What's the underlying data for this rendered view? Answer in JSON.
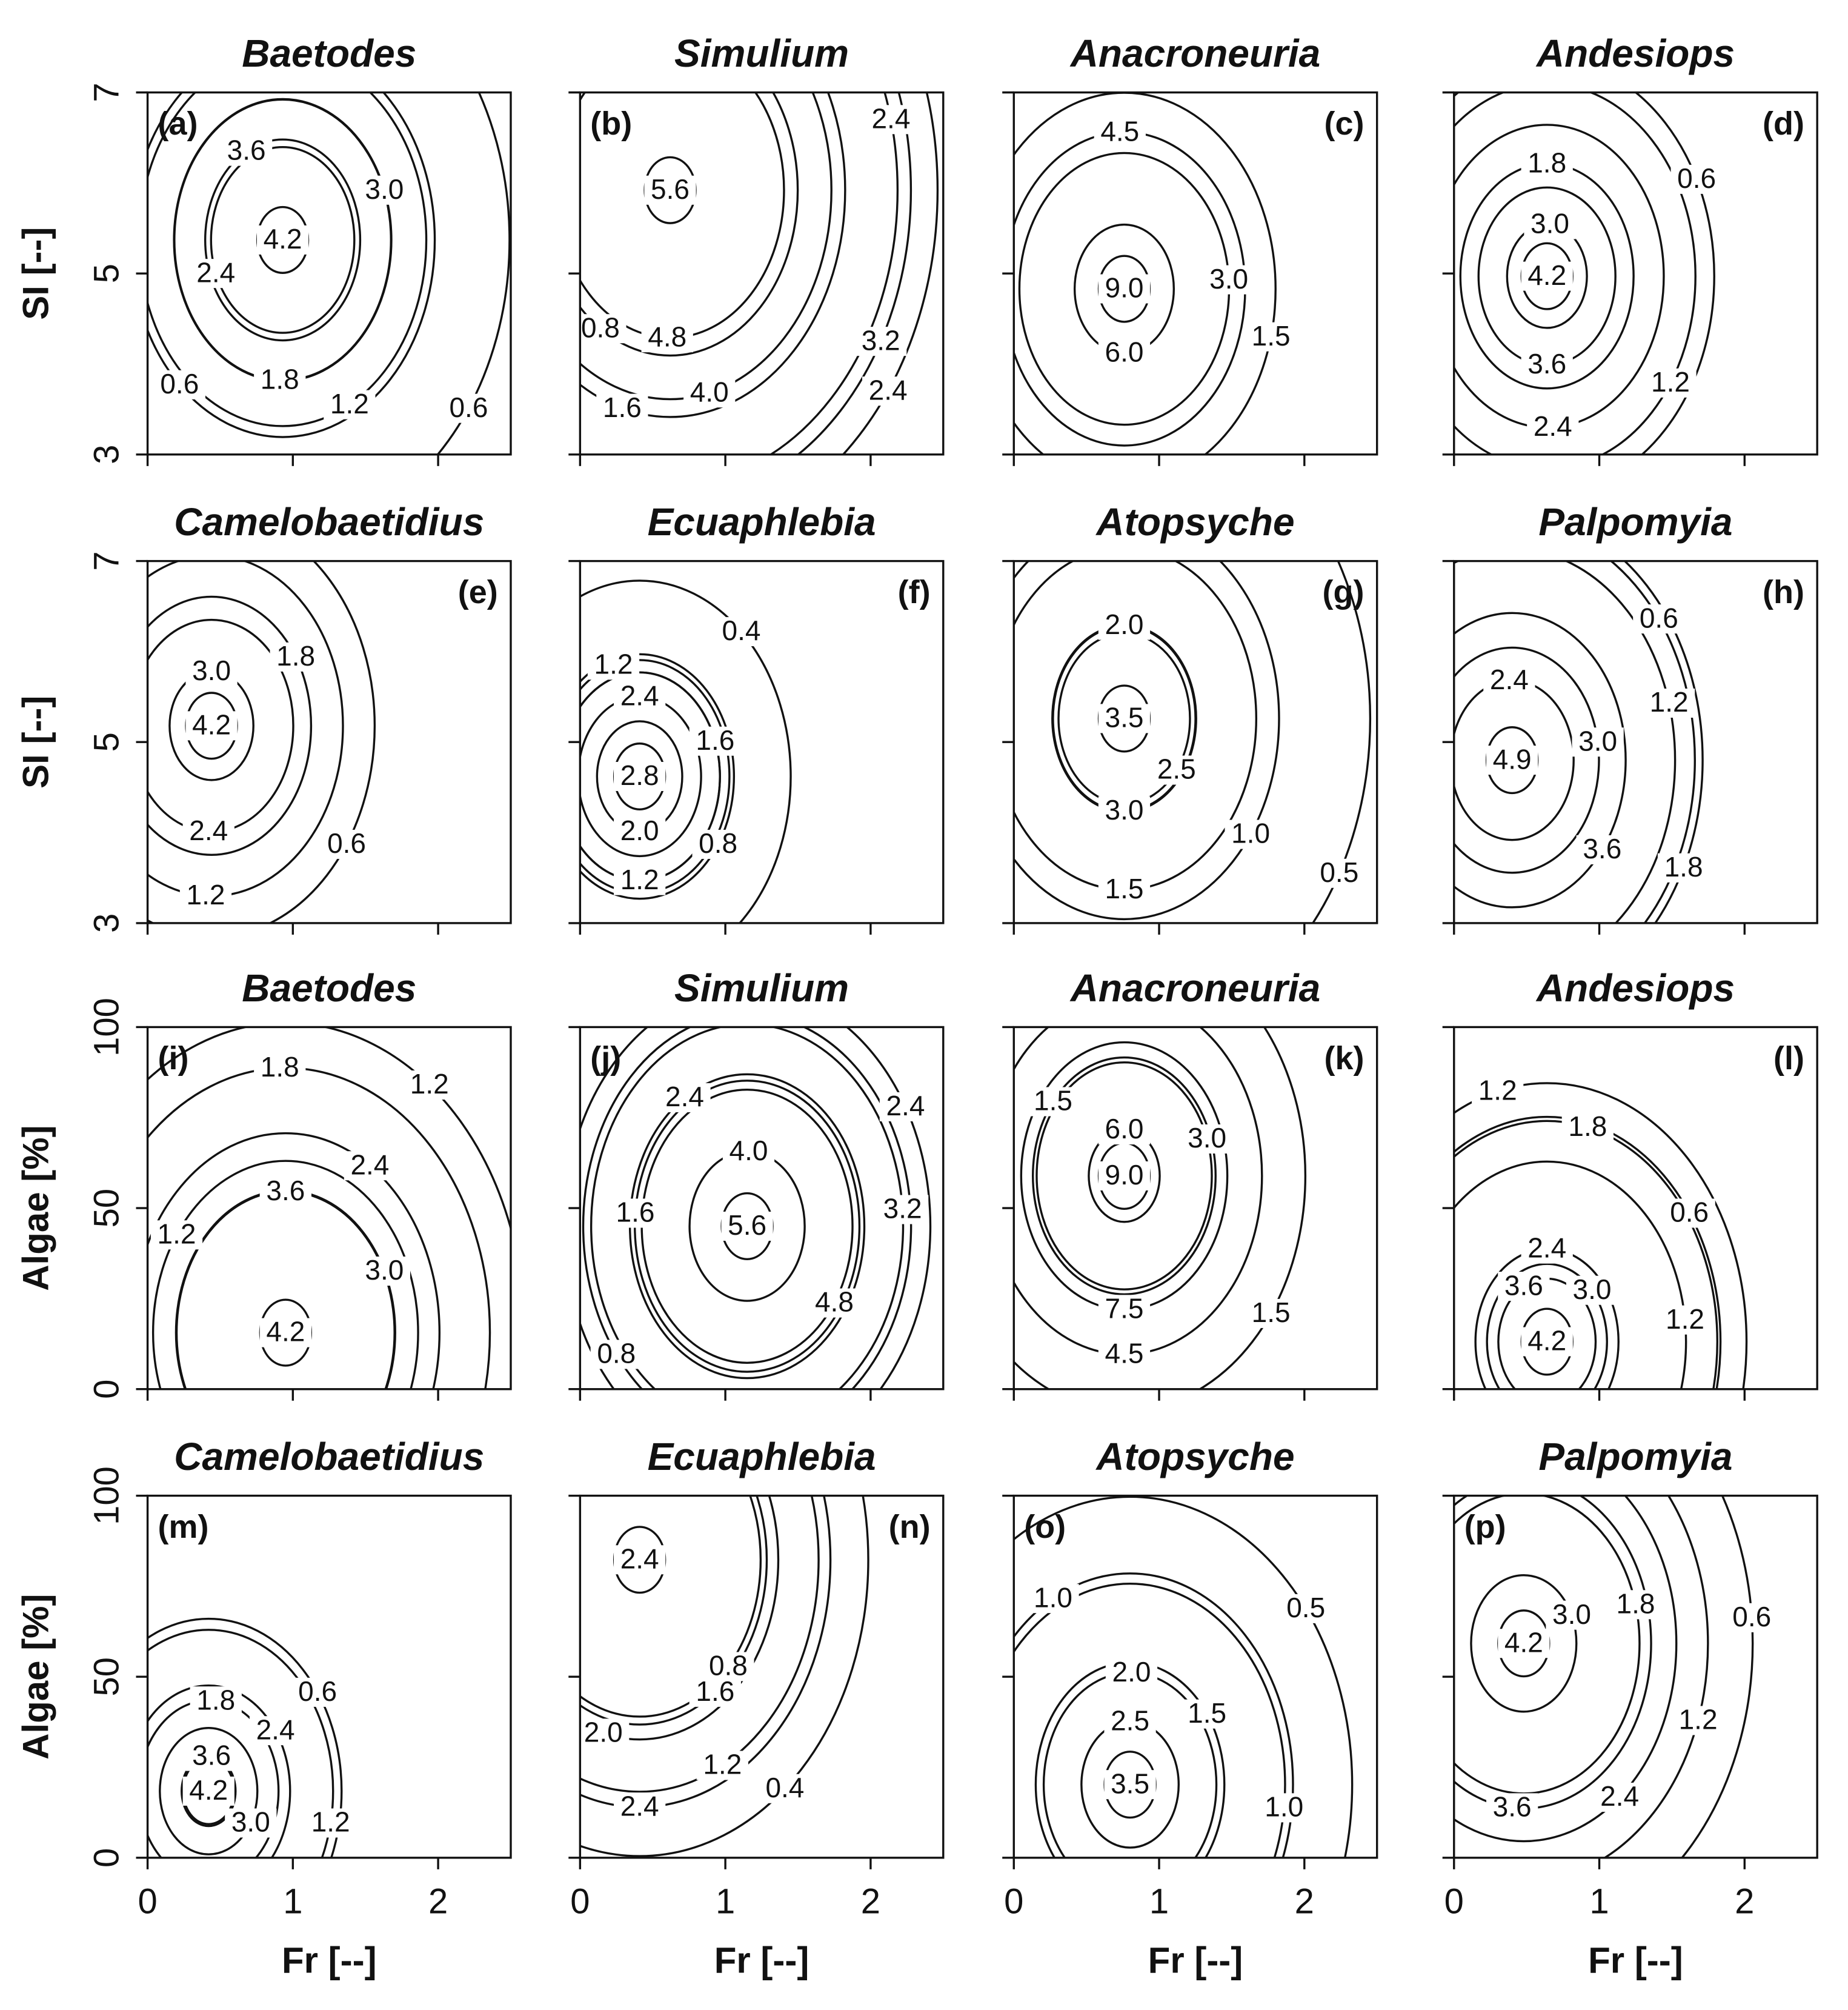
{
  "chart_data": [
    {
      "type": "contour",
      "title": "Baetodes",
      "panel_label": "(a)",
      "label_corner": "top-left",
      "ylabel": "SI [--]",
      "xlim": [
        0,
        2.5
      ],
      "xticks": [
        0,
        1,
        2
      ],
      "ylim": [
        3,
        7
      ],
      "yticks": [
        3,
        5,
        7
      ],
      "contours": [
        {
          "level": 3.6,
          "label": "3.6",
          "x": 0.68,
          "y": 6.35
        },
        {
          "level": 4.2,
          "label": "4.2",
          "x": 0.93,
          "y": 5.37
        },
        {
          "level": 3.0,
          "label": "3.0",
          "x": 1.63,
          "y": 5.92
        },
        {
          "level": 2.4,
          "label": "2.4",
          "x": 0.47,
          "y": 5.0
        },
        {
          "level": 1.8,
          "label": "1.8",
          "x": 0.91,
          "y": 3.82
        },
        {
          "level": 1.2,
          "label": "1.2",
          "x": 1.39,
          "y": 3.55
        },
        {
          "level": 0.6,
          "label": "0.6",
          "x": 0.22,
          "y": 3.77
        },
        {
          "level": 0.6,
          "label": "0.6",
          "x": 2.21,
          "y": 3.51
        }
      ]
    },
    {
      "type": "contour",
      "title": "Simulium",
      "panel_label": "(b)",
      "label_corner": "top-left",
      "xlim": [
        0,
        2.5
      ],
      "xticks": [
        0,
        1,
        2
      ],
      "ylim": [
        3,
        7
      ],
      "yticks": [
        3,
        5,
        7
      ],
      "contours": [
        {
          "level": 5.6,
          "label": "5.6",
          "x": 0.62,
          "y": 5.92
        },
        {
          "level": 4.8,
          "label": "4.8",
          "x": 0.6,
          "y": 4.29
        },
        {
          "level": 4.0,
          "label": "4.0",
          "x": 0.89,
          "y": 3.68
        },
        {
          "level": 3.2,
          "label": "3.2",
          "x": 2.07,
          "y": 4.25
        },
        {
          "level": 2.4,
          "label": "2.4",
          "x": 2.14,
          "y": 6.7
        },
        {
          "level": 2.4,
          "label": "2.4",
          "x": 2.12,
          "y": 3.7
        },
        {
          "level": 1.6,
          "label": "1.6",
          "x": 0.29,
          "y": 3.51
        },
        {
          "level": 0.8,
          "label": "0.8",
          "x": 0.14,
          "y": 4.39
        }
      ]
    },
    {
      "type": "contour",
      "title": "Anacroneuria",
      "panel_label": "(c)",
      "label_corner": "top-right",
      "xlim": [
        0,
        2.5
      ],
      "xticks": [
        0,
        1,
        2
      ],
      "ylim": [
        3,
        7
      ],
      "yticks": [
        3,
        5,
        7
      ],
      "contours": [
        {
          "level": 4.5,
          "label": "4.5",
          "x": 0.73,
          "y": 6.56
        },
        {
          "level": 9.0,
          "label": "9.0",
          "x": 0.76,
          "y": 4.83
        },
        {
          "level": 6.0,
          "label": "6.0",
          "x": 0.76,
          "y": 4.12
        },
        {
          "level": 3.0,
          "label": "3.0",
          "x": 1.48,
          "y": 4.93
        },
        {
          "level": 1.5,
          "label": "1.5",
          "x": 1.77,
          "y": 4.3
        }
      ]
    },
    {
      "type": "contour",
      "title": "Andesiops",
      "panel_label": "(d)",
      "label_corner": "top-right",
      "xlim": [
        0,
        2.5
      ],
      "xticks": [
        0,
        1,
        2
      ],
      "ylim": [
        3,
        7
      ],
      "yticks": [
        3,
        5,
        7
      ],
      "contours": [
        {
          "level": 1.8,
          "label": "1.8",
          "x": 0.64,
          "y": 6.21
        },
        {
          "level": 3.0,
          "label": "3.0",
          "x": 0.66,
          "y": 5.54
        },
        {
          "level": 4.2,
          "label": "4.2",
          "x": 0.64,
          "y": 4.97
        },
        {
          "level": 3.6,
          "label": "3.6",
          "x": 0.64,
          "y": 3.99
        },
        {
          "level": 2.4,
          "label": "2.4",
          "x": 0.68,
          "y": 3.3
        },
        {
          "level": 0.6,
          "label": "0.6",
          "x": 1.67,
          "y": 6.04
        },
        {
          "level": 1.2,
          "label": "1.2",
          "x": 1.49,
          "y": 3.79
        }
      ]
    },
    {
      "type": "contour",
      "title": "Camelobaetidius",
      "panel_label": "(e)",
      "label_corner": "top-right",
      "ylabel": "SI [--]",
      "xlim": [
        0,
        2.5
      ],
      "xticks": [
        0,
        1,
        2
      ],
      "ylim": [
        3,
        7
      ],
      "yticks": [
        3,
        5,
        7
      ],
      "contours": [
        {
          "level": 3.0,
          "label": "3.0",
          "x": 0.44,
          "y": 5.78
        },
        {
          "level": 4.2,
          "label": "4.2",
          "x": 0.44,
          "y": 5.18
        },
        {
          "level": 1.8,
          "label": "1.8",
          "x": 1.02,
          "y": 5.94
        },
        {
          "level": 2.4,
          "label": "2.4",
          "x": 0.42,
          "y": 4.01
        },
        {
          "level": 1.2,
          "label": "1.2",
          "x": 0.4,
          "y": 3.3
        },
        {
          "level": 0.6,
          "label": "0.6",
          "x": 1.37,
          "y": 3.87
        }
      ]
    },
    {
      "type": "contour",
      "title": "Ecuaphlebia",
      "panel_label": "(f)",
      "label_corner": "top-right",
      "xlim": [
        0,
        2.5
      ],
      "xticks": [
        0,
        1,
        2
      ],
      "ylim": [
        3,
        7
      ],
      "yticks": [
        3,
        5,
        7
      ],
      "contours": [
        {
          "level": 1.2,
          "label": "1.2",
          "x": 0.23,
          "y": 5.85
        },
        {
          "level": 0.4,
          "label": "0.4",
          "x": 1.11,
          "y": 6.22
        },
        {
          "level": 2.4,
          "label": "2.4",
          "x": 0.41,
          "y": 5.5
        },
        {
          "level": 1.6,
          "label": "1.6",
          "x": 0.93,
          "y": 5.01
        },
        {
          "level": 2.8,
          "label": "2.8",
          "x": 0.41,
          "y": 4.62
        },
        {
          "level": 2.0,
          "label": "2.0",
          "x": 0.41,
          "y": 4.01
        },
        {
          "level": 1.2,
          "label": "1.2",
          "x": 0.41,
          "y": 3.47
        },
        {
          "level": 0.8,
          "label": "0.8",
          "x": 0.95,
          "y": 3.87
        }
      ]
    },
    {
      "type": "contour",
      "title": "Atopsyche",
      "panel_label": "(g)",
      "label_corner": "top-right",
      "xlim": [
        0,
        2.5
      ],
      "xticks": [
        0,
        1,
        2
      ],
      "ylim": [
        3,
        7
      ],
      "yticks": [
        3,
        5,
        7
      ],
      "contours": [
        {
          "level": 2.0,
          "label": "2.0",
          "x": 0.76,
          "y": 6.29
        },
        {
          "level": 3.5,
          "label": "3.5",
          "x": 0.76,
          "y": 5.26
        },
        {
          "level": 2.5,
          "label": "2.5",
          "x": 1.12,
          "y": 4.69
        },
        {
          "level": 3.0,
          "label": "3.0",
          "x": 0.76,
          "y": 4.24
        },
        {
          "level": 1.0,
          "label": "1.0",
          "x": 1.63,
          "y": 3.98
        },
        {
          "level": 0.5,
          "label": "0.5",
          "x": 2.24,
          "y": 3.55
        },
        {
          "level": 1.5,
          "label": "1.5",
          "x": 0.76,
          "y": 3.37
        }
      ]
    },
    {
      "type": "contour",
      "title": "Palpomyia",
      "panel_label": "(h)",
      "label_corner": "top-right",
      "xlim": [
        0,
        2.5
      ],
      "xticks": [
        0,
        1,
        2
      ],
      "ylim": [
        3,
        7
      ],
      "yticks": [
        3,
        5,
        7
      ],
      "contours": [
        {
          "level": 0.6,
          "label": "0.6",
          "x": 1.41,
          "y": 6.36
        },
        {
          "level": 2.4,
          "label": "2.4",
          "x": 0.38,
          "y": 5.68
        },
        {
          "level": 1.2,
          "label": "1.2",
          "x": 1.48,
          "y": 5.43
        },
        {
          "level": 3.0,
          "label": "3.0",
          "x": 0.99,
          "y": 5.0
        },
        {
          "level": 4.9,
          "label": "4.9",
          "x": 0.4,
          "y": 4.8
        },
        {
          "level": 3.6,
          "label": "3.6",
          "x": 1.02,
          "y": 3.81
        },
        {
          "level": 1.8,
          "label": "1.8",
          "x": 1.58,
          "y": 3.61
        }
      ]
    },
    {
      "type": "contour",
      "title": "Baetodes",
      "panel_label": "(i)",
      "label_corner": "top-left",
      "ylabel": "Algae [%]",
      "xlim": [
        0,
        2.5
      ],
      "xticks": [
        0,
        1,
        2
      ],
      "ylim": [
        0,
        100
      ],
      "yticks": [
        0,
        50,
        100
      ],
      "contours": [
        {
          "level": 1.8,
          "label": "1.8",
          "x": 0.91,
          "y": 88.7
        },
        {
          "level": 1.2,
          "label": "1.2",
          "x": 1.94,
          "y": 84
        },
        {
          "level": 2.4,
          "label": "2.4",
          "x": 1.53,
          "y": 61.7
        },
        {
          "level": 3.6,
          "label": "3.6",
          "x": 0.95,
          "y": 54.6
        },
        {
          "level": 3.0,
          "label": "3.0",
          "x": 1.63,
          "y": 32.6
        },
        {
          "level": 4.2,
          "label": "4.2",
          "x": 0.95,
          "y": 15.6
        },
        {
          "level": 1.2,
          "label": "1.2",
          "x": 0.2,
          "y": 42.6
        }
      ]
    },
    {
      "type": "contour",
      "title": "Simulium",
      "panel_label": "(j)",
      "label_corner": "top-left",
      "xlim": [
        0,
        2.5
      ],
      "xticks": [
        0,
        1,
        2
      ],
      "ylim": [
        0,
        100
      ],
      "yticks": [
        0,
        50,
        100
      ],
      "contours": [
        {
          "level": 2.4,
          "label": "2.4",
          "x": 0.72,
          "y": 80.5
        },
        {
          "level": 4.0,
          "label": "4.0",
          "x": 1.16,
          "y": 65.6
        },
        {
          "level": 1.6,
          "label": "1.6",
          "x": 0.38,
          "y": 48.6
        },
        {
          "level": 5.6,
          "label": "5.6",
          "x": 1.15,
          "y": 45
        },
        {
          "level": 4.8,
          "label": "4.8",
          "x": 1.75,
          "y": 23.8
        },
        {
          "level": 3.2,
          "label": "3.2",
          "x": 2.22,
          "y": 49.6
        },
        {
          "level": 2.4,
          "label": "2.4",
          "x": 2.24,
          "y": 78
        },
        {
          "level": 0.8,
          "label": "0.8",
          "x": 0.25,
          "y": 9.6
        }
      ]
    },
    {
      "type": "contour",
      "title": "Anacroneuria",
      "panel_label": "(k)",
      "label_corner": "top-right",
      "xlim": [
        0,
        2.5
      ],
      "xticks": [
        0,
        1,
        2
      ],
      "ylim": [
        0,
        100
      ],
      "yticks": [
        0,
        50,
        100
      ],
      "contours": [
        {
          "level": 1.5,
          "label": "1.5",
          "x": 0.27,
          "y": 79.4
        },
        {
          "level": 6.0,
          "label": "6.0",
          "x": 0.76,
          "y": 71.6
        },
        {
          "level": 3.0,
          "label": "3.0",
          "x": 1.33,
          "y": 69.1
        },
        {
          "level": 9.0,
          "label": "9.0",
          "x": 0.76,
          "y": 58.9
        },
        {
          "level": 7.5,
          "label": "7.5",
          "x": 0.76,
          "y": 22
        },
        {
          "level": 4.5,
          "label": "4.5",
          "x": 0.76,
          "y": 9.6
        },
        {
          "level": 1.5,
          "label": "1.5",
          "x": 1.77,
          "y": 20.9
        }
      ]
    },
    {
      "type": "contour",
      "title": "Andesiops",
      "panel_label": "(l)",
      "label_corner": "top-right",
      "xlim": [
        0,
        2.5
      ],
      "xticks": [
        0,
        1,
        2
      ],
      "ylim": [
        0,
        100
      ],
      "yticks": [
        0,
        50,
        100
      ],
      "contours": [
        {
          "level": 1.2,
          "label": "1.2",
          "x": 0.3,
          "y": 82.3
        },
        {
          "level": 1.8,
          "label": "1.8",
          "x": 0.92,
          "y": 72.3
        },
        {
          "level": 0.6,
          "label": "0.6",
          "x": 1.62,
          "y": 48.6
        },
        {
          "level": 2.4,
          "label": "2.4",
          "x": 0.64,
          "y": 38.7
        },
        {
          "level": 3.6,
          "label": "3.6",
          "x": 0.48,
          "y": 28.4
        },
        {
          "level": 3.0,
          "label": "3.0",
          "x": 0.95,
          "y": 27.3
        },
        {
          "level": 4.2,
          "label": "4.2",
          "x": 0.64,
          "y": 13.1
        },
        {
          "level": 1.2,
          "label": "1.2",
          "x": 1.59,
          "y": 19.1
        }
      ]
    },
    {
      "type": "contour",
      "title": "Camelobaetidius",
      "panel_label": "(m)",
      "label_corner": "top-left",
      "xlabel": "Fr [--]",
      "ylabel": "Algae [%]",
      "xlim": [
        0,
        2.5
      ],
      "xticks": [
        0,
        1,
        2
      ],
      "ylim": [
        0,
        100
      ],
      "yticks": [
        0,
        50,
        100
      ],
      "contours": [
        {
          "level": 0.6,
          "label": "0.6",
          "x": 1.17,
          "y": 45.7
        },
        {
          "level": 1.8,
          "label": "1.8",
          "x": 0.47,
          "y": 43.3
        },
        {
          "level": 2.4,
          "label": "2.4",
          "x": 0.88,
          "y": 35.1
        },
        {
          "level": 3.6,
          "label": "3.6",
          "x": 0.44,
          "y": 28
        },
        {
          "level": 4.2,
          "label": "4.2",
          "x": 0.42,
          "y": 18.4
        },
        {
          "level": 3.0,
          "label": "3.0",
          "x": 0.71,
          "y": 9.6
        },
        {
          "level": 1.2,
          "label": "1.2",
          "x": 1.26,
          "y": 9.6
        }
      ]
    },
    {
      "type": "contour",
      "title": "Ecuaphlebia",
      "panel_label": "(n)",
      "label_corner": "top-right",
      "xlabel": "Fr [--]",
      "xlim": [
        0,
        2.5
      ],
      "xticks": [
        0,
        1,
        2
      ],
      "ylim": [
        0,
        100
      ],
      "yticks": [
        0,
        50,
        100
      ],
      "contours": [
        {
          "level": 2.4,
          "label": "2.4",
          "x": 0.41,
          "y": 82.3
        },
        {
          "level": 1.6,
          "label": "1.6",
          "x": 0.93,
          "y": 45.7
        },
        {
          "level": 0.8,
          "label": "0.8",
          "x": 1.02,
          "y": 52.8
        },
        {
          "level": 2.0,
          "label": "2.0",
          "x": 0.16,
          "y": 34.4
        },
        {
          "level": 1.2,
          "label": "1.2",
          "x": 0.98,
          "y": 25.5
        },
        {
          "level": 0.4,
          "label": "0.4",
          "x": 1.41,
          "y": 19.1
        },
        {
          "level": 2.4,
          "label": "2.4",
          "x": 0.41,
          "y": 14
        }
      ]
    },
    {
      "type": "contour",
      "title": "Atopsyche",
      "panel_label": "(o)",
      "label_corner": "top-left",
      "xlabel": "Fr [--]",
      "xlim": [
        0,
        2.5
      ],
      "xticks": [
        0,
        1,
        2
      ],
      "ylim": [
        0,
        100
      ],
      "yticks": [
        0,
        50,
        100
      ],
      "contours": [
        {
          "level": 1.0,
          "label": "1.0",
          "x": 0.27,
          "y": 71.6
        },
        {
          "level": 0.5,
          "label": "0.5",
          "x": 2.01,
          "y": 68.8
        },
        {
          "level": 2.0,
          "label": "2.0",
          "x": 0.81,
          "y": 51.1
        },
        {
          "level": 1.5,
          "label": "1.5",
          "x": 1.33,
          "y": 39.7
        },
        {
          "level": 2.5,
          "label": "2.5",
          "x": 0.8,
          "y": 37.6
        },
        {
          "level": 3.5,
          "label": "3.5",
          "x": 0.8,
          "y": 20.2
        },
        {
          "level": 1.0,
          "label": "1.0",
          "x": 1.86,
          "y": 13.8
        }
      ]
    },
    {
      "type": "contour",
      "title": "Palpomyia",
      "panel_label": "(p)",
      "label_corner": "top-left",
      "xlabel": "Fr [--]",
      "xlim": [
        0,
        2.5
      ],
      "xticks": [
        0,
        1,
        2
      ],
      "ylim": [
        0,
        100
      ],
      "yticks": [
        0,
        50,
        100
      ],
      "contours": [
        {
          "level": 3.0,
          "label": "3.0",
          "x": 0.81,
          "y": 67
        },
        {
          "level": 1.8,
          "label": "1.8",
          "x": 1.25,
          "y": 69.9
        },
        {
          "level": 0.6,
          "label": "0.6",
          "x": 2.05,
          "y": 66.3
        },
        {
          "level": 4.2,
          "label": "4.2",
          "x": 0.48,
          "y": 59.2
        },
        {
          "level": 1.2,
          "label": "1.2",
          "x": 1.68,
          "y": 37.9
        },
        {
          "level": 2.4,
          "label": "2.4",
          "x": 1.14,
          "y": 16.7
        },
        {
          "level": 3.6,
          "label": "3.6",
          "x": 0.4,
          "y": 13.8
        }
      ]
    }
  ]
}
